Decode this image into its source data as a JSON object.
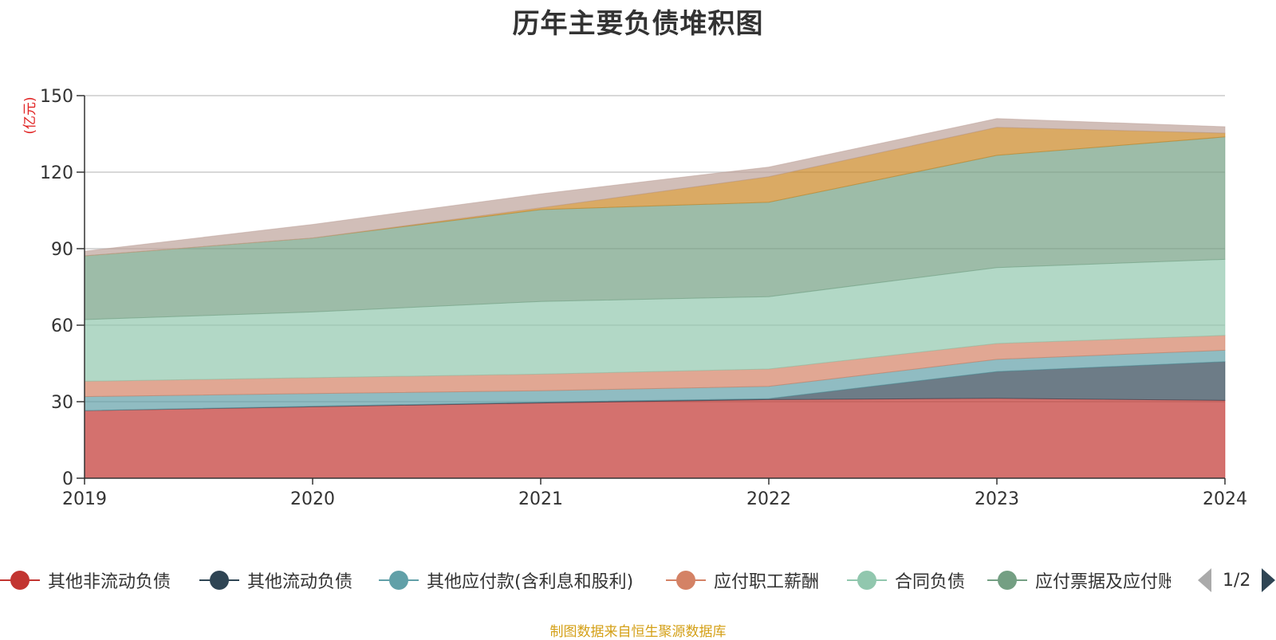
{
  "title": "历年主要负债堆积图",
  "source_note": "制图数据来自恒生聚源数据库",
  "pager": {
    "text": "1/2"
  },
  "legend": [
    {
      "name": "其他非流动负债",
      "color": "#c23531"
    },
    {
      "name": "其他流动负债",
      "color": "#2f4554"
    },
    {
      "name": "其他应付款(含利息和股利)",
      "color": "#61a0a8"
    },
    {
      "name": "应付职工薪酬",
      "color": "#d48265"
    },
    {
      "name": "合同负债",
      "color": "#91c7ae"
    },
    {
      "name": "应付票据及应付账款",
      "color": "#749f83"
    }
  ],
  "chart_data": {
    "type": "area",
    "stacked": true,
    "title": "历年主要负债堆积图",
    "ylabel": "(亿元)",
    "xlabel": "",
    "categories": [
      "2019",
      "2020",
      "2021",
      "2022",
      "2023",
      "2024"
    ],
    "ylim": [
      0,
      150
    ],
    "yticks": [
      0,
      30,
      60,
      90,
      120,
      150
    ],
    "grid": true,
    "legend_position": "bottom",
    "series": [
      {
        "name": "其他非流动负债",
        "color": "#c23531",
        "values": [
          26.5,
          28.0,
          29.5,
          30.8,
          31.3,
          30.5
        ]
      },
      {
        "name": "其他流动负债",
        "color": "#2f4554",
        "values": [
          0.0,
          0.2,
          0.3,
          0.4,
          10.5,
          15.2
        ]
      },
      {
        "name": "其他应付款(含利息和股利)",
        "color": "#61a0a8",
        "values": [
          5.5,
          5.0,
          4.5,
          4.8,
          4.8,
          4.5
        ]
      },
      {
        "name": "应付职工薪酬",
        "color": "#d48265",
        "values": [
          6.0,
          6.2,
          6.5,
          6.8,
          6.2,
          5.8
        ]
      },
      {
        "name": "合同负债",
        "color": "#91c7ae",
        "values": [
          24.2,
          25.8,
          28.5,
          28.4,
          29.8,
          29.8
        ]
      },
      {
        "name": "应付票据及应付账款",
        "color": "#749f83",
        "values": [
          25.0,
          29.0,
          36.0,
          37.0,
          44.0,
          48.0
        ]
      },
      {
        "name": "",
        "color": "#ca8622",
        "values": [
          0.0,
          0.0,
          0.7,
          10.0,
          11.0,
          1.5
        ]
      },
      {
        "name": "",
        "color": "#bda29a",
        "values": [
          1.8,
          5.3,
          5.5,
          3.8,
          3.4,
          2.5
        ]
      }
    ]
  }
}
